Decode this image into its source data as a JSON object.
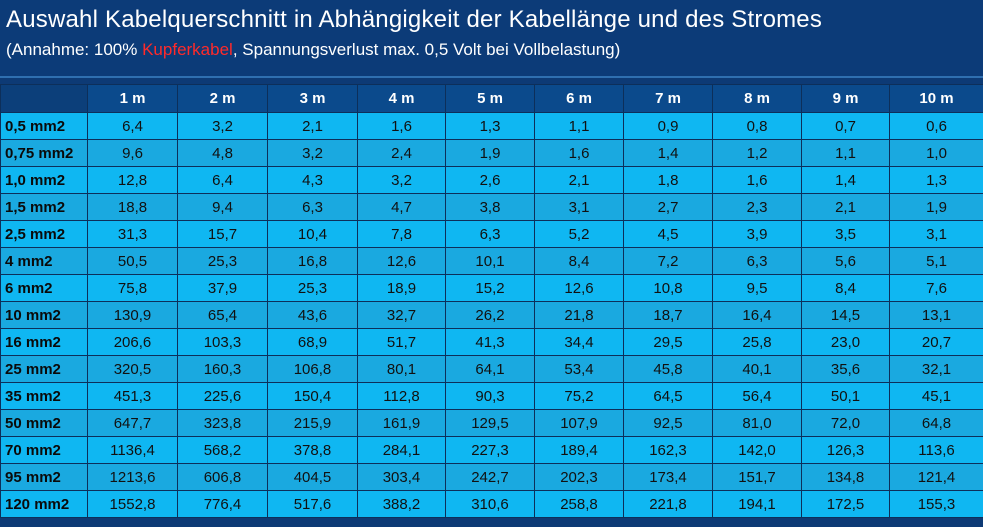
{
  "header": {
    "title": "Auswahl Kabelquerschnitt in Abhängigkeit der Kabellänge und des Stromes",
    "subtitle_before": "(Annahme: 100% ",
    "subtitle_highlight": "Kupferkabel",
    "subtitle_after": ", Spannungsverlust max. 0,5 Volt bei Vollbelastung)",
    "highlight_color": "#ff2a2a"
  },
  "table": {
    "columns": [
      "1 m",
      "2 m",
      "3 m",
      "4 m",
      "5 m",
      "6 m",
      "7 m",
      "8 m",
      "9 m",
      "10 m"
    ],
    "rows": [
      {
        "label": "0,5 mm2",
        "values": [
          "6,4",
          "3,2",
          "2,1",
          "1,6",
          "1,3",
          "1,1",
          "0,9",
          "0,8",
          "0,7",
          "0,6"
        ]
      },
      {
        "label": "0,75 mm2",
        "values": [
          "9,6",
          "4,8",
          "3,2",
          "2,4",
          "1,9",
          "1,6",
          "1,4",
          "1,2",
          "1,1",
          "1,0"
        ]
      },
      {
        "label": "1,0  mm2",
        "values": [
          "12,8",
          "6,4",
          "4,3",
          "3,2",
          "2,6",
          "2,1",
          "1,8",
          "1,6",
          "1,4",
          "1,3"
        ]
      },
      {
        "label": "1,5 mm2",
        "values": [
          "18,8",
          "9,4",
          "6,3",
          "4,7",
          "3,8",
          "3,1",
          "2,7",
          "2,3",
          "2,1",
          "1,9"
        ]
      },
      {
        "label": "2,5 mm2",
        "values": [
          "31,3",
          "15,7",
          "10,4",
          "7,8",
          "6,3",
          "5,2",
          "4,5",
          "3,9",
          "3,5",
          "3,1"
        ]
      },
      {
        "label": "4 mm2",
        "values": [
          "50,5",
          "25,3",
          "16,8",
          "12,6",
          "10,1",
          "8,4",
          "7,2",
          "6,3",
          "5,6",
          "5,1"
        ]
      },
      {
        "label": "6 mm2",
        "values": [
          "75,8",
          "37,9",
          "25,3",
          "18,9",
          "15,2",
          "12,6",
          "10,8",
          "9,5",
          "8,4",
          "7,6"
        ]
      },
      {
        "label": "10 mm2",
        "values": [
          "130,9",
          "65,4",
          "43,6",
          "32,7",
          "26,2",
          "21,8",
          "18,7",
          "16,4",
          "14,5",
          "13,1"
        ]
      },
      {
        "label": "16 mm2",
        "values": [
          "206,6",
          "103,3",
          "68,9",
          "51,7",
          "41,3",
          "34,4",
          "29,5",
          "25,8",
          "23,0",
          "20,7"
        ]
      },
      {
        "label": "25 mm2",
        "values": [
          "320,5",
          "160,3",
          "106,8",
          "80,1",
          "64,1",
          "53,4",
          "45,8",
          "40,1",
          "35,6",
          "32,1"
        ]
      },
      {
        "label": "35 mm2",
        "values": [
          "451,3",
          "225,6",
          "150,4",
          "112,8",
          "90,3",
          "75,2",
          "64,5",
          "56,4",
          "50,1",
          "45,1"
        ]
      },
      {
        "label": "50 mm2",
        "values": [
          "647,7",
          "323,8",
          "215,9",
          "161,9",
          "129,5",
          "107,9",
          "92,5",
          "81,0",
          "72,0",
          "64,8"
        ]
      },
      {
        "label": "70 mm2",
        "values": [
          "1136,4",
          "568,2",
          "378,8",
          "284,1",
          "227,3",
          "189,4",
          "162,3",
          "142,0",
          "126,3",
          "113,6"
        ]
      },
      {
        "label": "95 mm2",
        "values": [
          "1213,6",
          "606,8",
          "404,5",
          "303,4",
          "242,7",
          "202,3",
          "173,4",
          "151,7",
          "134,8",
          "121,4"
        ]
      },
      {
        "label": "120 mm2",
        "values": [
          "1552,8",
          "776,4",
          "517,6",
          "388,2",
          "310,6",
          "258,8",
          "221,8",
          "194,1",
          "172,5",
          "155,3"
        ]
      }
    ]
  }
}
